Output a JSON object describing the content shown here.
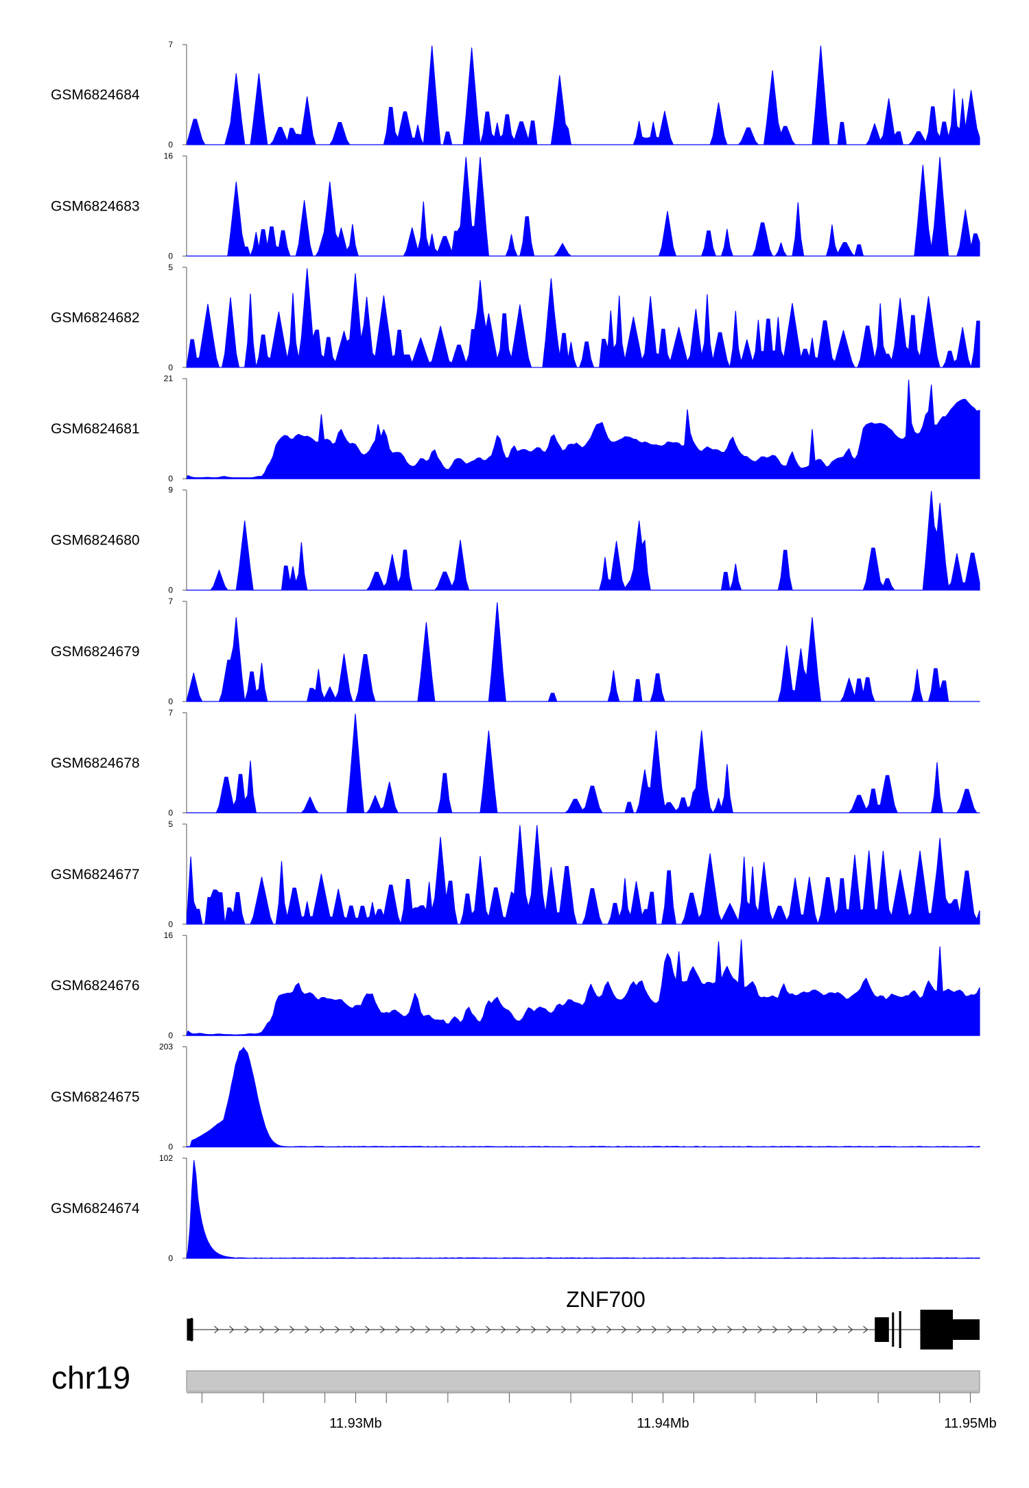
{
  "chart_data": {
    "type": "area",
    "region": {
      "chrom": "chr19",
      "start_mb": 11.9245,
      "end_mb": 11.9503
    },
    "fill_color": "#0000ff",
    "tracks": [
      {
        "name": "GSM6824684",
        "ymax": "7",
        "ymin": "0",
        "kind": "sparse",
        "seed": 11,
        "peaks": [
          [
            0.06,
            0.72
          ],
          [
            0.09,
            0.72
          ],
          [
            0.31,
            1.0
          ],
          [
            0.36,
            0.98
          ],
          [
            0.47,
            0.7
          ],
          [
            0.74,
            0.75
          ],
          [
            0.8,
            1.0
          ],
          [
            0.99,
            0.55
          ]
        ]
      },
      {
        "name": "GSM6824683",
        "ymax": "16",
        "ymin": "0",
        "kind": "sparse",
        "seed": 23,
        "peaks": [
          [
            0.06,
            0.75
          ],
          [
            0.18,
            0.75
          ],
          [
            0.35,
            1.0
          ],
          [
            0.37,
            1.0
          ],
          [
            0.93,
            0.92
          ],
          [
            0.95,
            1.0
          ]
        ]
      },
      {
        "name": "GSM6824682",
        "ymax": "5",
        "ymin": "0",
        "kind": "dense",
        "seed": 37,
        "peaks": [
          [
            0.15,
            1.0
          ],
          [
            0.21,
            0.95
          ],
          [
            0.46,
            0.9
          ],
          [
            0.37,
            0.88
          ],
          [
            0.9,
            0.7
          ]
        ]
      },
      {
        "name": "GSM6824681",
        "ymax": "21",
        "ymin": "0",
        "kind": "broad",
        "seed": 51,
        "peaks": [
          [
            0.17,
            0.65
          ],
          [
            0.24,
            0.55
          ],
          [
            0.63,
            0.7
          ],
          [
            0.79,
            0.5
          ],
          [
            0.91,
            1.0
          ],
          [
            0.94,
            0.95
          ]
        ]
      },
      {
        "name": "GSM6824680",
        "ymax": "9",
        "ymin": "0",
        "kind": "sparse",
        "seed": 67,
        "peaks": [
          [
            0.07,
            0.7
          ],
          [
            0.57,
            0.7
          ],
          [
            0.94,
            1.0
          ],
          [
            0.95,
            0.88
          ]
        ]
      },
      {
        "name": "GSM6824679",
        "ymax": "7",
        "ymin": "0",
        "kind": "sparse",
        "seed": 79,
        "peaks": [
          [
            0.06,
            0.85
          ],
          [
            0.3,
            0.8
          ],
          [
            0.39,
            1.0
          ],
          [
            0.79,
            0.85
          ]
        ]
      },
      {
        "name": "GSM6824678",
        "ymax": "7",
        "ymin": "0",
        "kind": "sparse",
        "seed": 83,
        "peaks": [
          [
            0.21,
            1.0
          ],
          [
            0.38,
            0.83
          ],
          [
            0.59,
            0.83
          ],
          [
            0.65,
            0.83
          ]
        ]
      },
      {
        "name": "GSM6824677",
        "ymax": "5",
        "ymin": "0",
        "kind": "dense",
        "seed": 97,
        "peaks": [
          [
            0.42,
            1.0
          ],
          [
            0.44,
            1.0
          ],
          [
            0.32,
            0.88
          ],
          [
            0.95,
            0.87
          ]
        ]
      },
      {
        "name": "GSM6824676",
        "ymax": "16",
        "ymin": "0",
        "kind": "broad",
        "seed": 103,
        "peaks": [
          [
            0.62,
            0.85
          ],
          [
            0.67,
            0.95
          ],
          [
            0.7,
            0.97
          ],
          [
            0.95,
            0.9
          ]
        ]
      },
      {
        "name": "GSM6824675",
        "ymax": "203",
        "ymin": "0",
        "kind": "single",
        "seed": 5,
        "peaks": [
          [
            0.07,
            1.0
          ]
        ]
      },
      {
        "name": "GSM6824674",
        "ymax": "102",
        "ymin": "0",
        "kind": "single",
        "seed": 9,
        "peaks": [
          [
            0.008,
            1.0
          ]
        ]
      }
    ],
    "gene": {
      "name": "ZNF700",
      "strand": "+",
      "start_mb": 11.9246,
      "end_mb": 11.9503,
      "exons_mb": [
        [
          11.92463,
          11.92466
        ],
        [
          11.94689,
          11.94735
        ],
        [
          11.94745,
          11.94751
        ],
        [
          11.94768,
          11.94775
        ],
        [
          11.94837,
          11.94943
        ],
        [
          11.94943,
          11.9503
        ]
      ]
    },
    "chromosome": "chr19",
    "axis": {
      "labels": [
        {
          "mb": 11.93,
          "text": "11.93Mb"
        },
        {
          "mb": 11.94,
          "text": "11.94Mb"
        },
        {
          "mb": 11.95,
          "text": "11.95Mb"
        }
      ],
      "minor_tick_mb": [
        11.925,
        11.927,
        11.929,
        11.931,
        11.933,
        11.935,
        11.937,
        11.939,
        11.941,
        11.943,
        11.945,
        11.947,
        11.949
      ]
    }
  }
}
